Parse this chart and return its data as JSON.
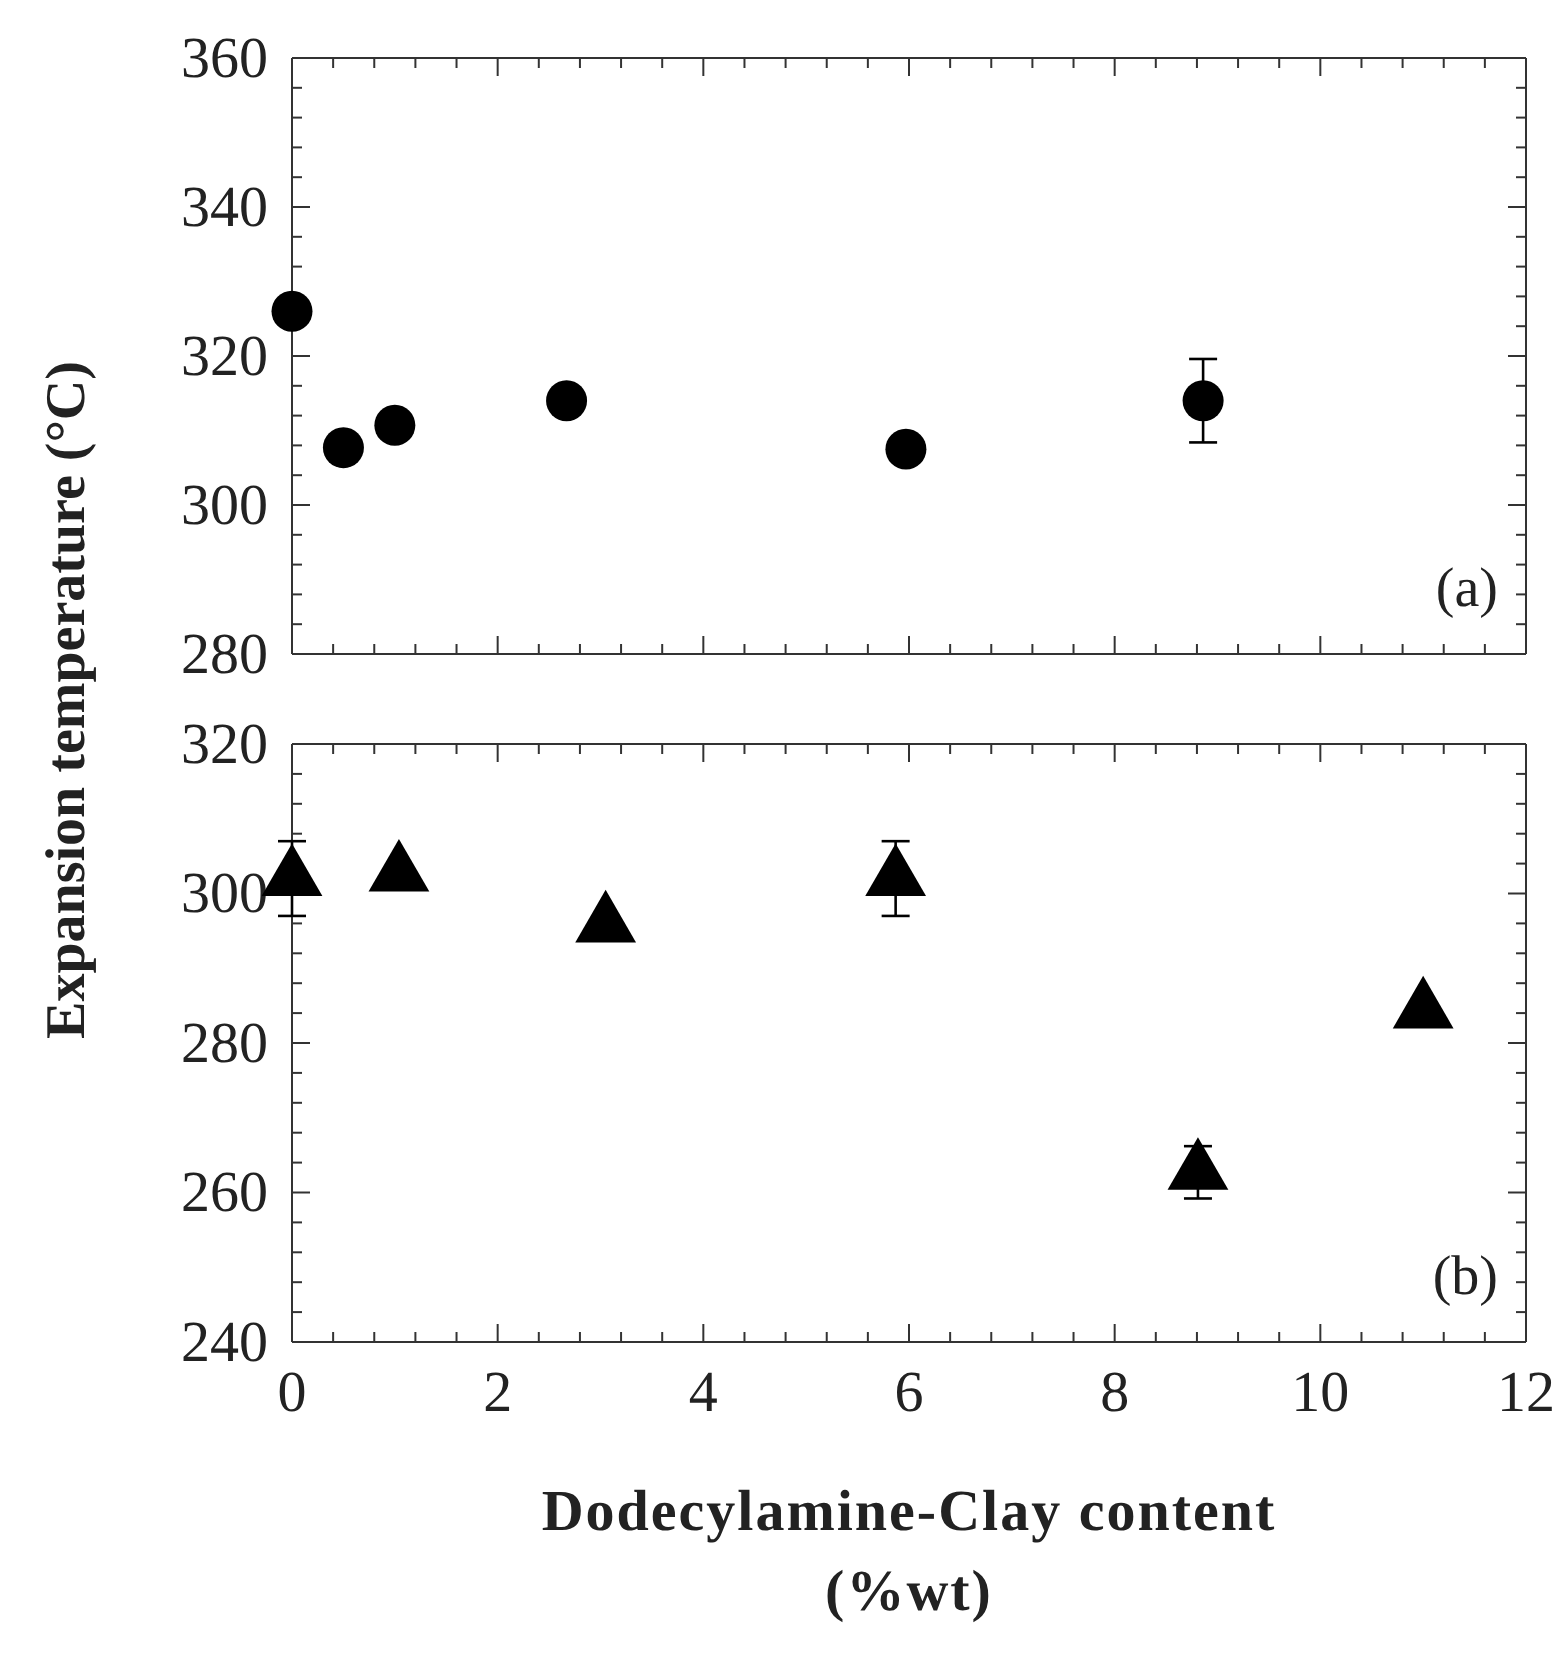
{
  "chart_data": [
    {
      "type": "scatter",
      "ylabel": "Expansion temperature (°C)",
      "x": [
        0,
        0.5,
        1.0,
        2.67,
        5.97,
        8.86
      ],
      "values": [
        326,
        307.7,
        310.7,
        314,
        307.5,
        314
      ],
      "errors": [
        null,
        null,
        null,
        null,
        null,
        5.6
      ],
      "color": "#000000",
      "marker": "circle",
      "xlim": [
        0,
        12
      ],
      "ylim": [
        280,
        360
      ],
      "xticks": [
        0,
        2,
        4,
        6,
        8,
        10,
        12
      ],
      "yticks": [
        280,
        300,
        320,
        340,
        360
      ],
      "tick_labels": "y",
      "grid": false,
      "annotations": [
        "(a)"
      ]
    },
    {
      "type": "scatter",
      "xlabel": "Dodecylamine-Clay content\n(%wt)",
      "x": [
        0,
        1.04,
        3.05,
        5.87,
        8.81,
        11.0
      ],
      "values": [
        302,
        302.6,
        295.8,
        302,
        262.7,
        284.3
      ],
      "errors": [
        5,
        null,
        null,
        5,
        3.5,
        null
      ],
      "color": "#000000",
      "marker": "triangle",
      "xlim": [
        0,
        12
      ],
      "ylim": [
        240,
        320
      ],
      "xticks": [
        0,
        2,
        4,
        6,
        8,
        10,
        12
      ],
      "yticks": [
        240,
        260,
        280,
        300,
        320
      ],
      "grid": false,
      "annotations": [
        "(b)"
      ]
    }
  ]
}
